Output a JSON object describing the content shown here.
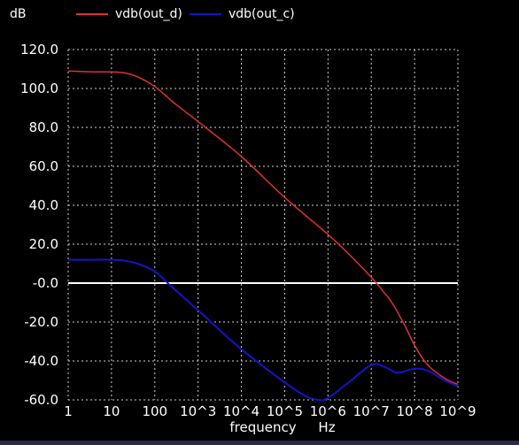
{
  "chart_data": {
    "type": "line",
    "y_unit": "dB",
    "xlabel": "frequency",
    "x_unit": "Hz",
    "x_scale": "log",
    "xlim": [
      1,
      1000000000
    ],
    "ylim": [
      -60,
      120
    ],
    "x_tick_values": [
      1,
      10,
      100,
      1000,
      10000,
      100000,
      1000000,
      10000000,
      100000000,
      1000000000
    ],
    "x_tick_labels": [
      "1",
      "10",
      "100",
      "10^3",
      "10^4",
      "10^5",
      "10^6",
      "10^7",
      "10^8",
      "10^9"
    ],
    "y_tick_values": [
      120,
      100,
      80,
      60,
      40,
      20,
      0,
      -20,
      -40,
      -60
    ],
    "y_tick_labels": [
      "120.0",
      "100.0",
      "80.0",
      "60.0",
      "40.0",
      "20.0",
      "-0.0",
      "-20.0",
      "-40.0",
      "-60.0"
    ],
    "grid": true,
    "legend_position": "top",
    "zero_line_color": "#ffffff",
    "series": [
      {
        "name": "vdb(out_d)",
        "color": "#e03030",
        "points": [
          [
            1,
            109
          ],
          [
            3,
            108.6
          ],
          [
            10,
            108.5
          ],
          [
            20,
            108
          ],
          [
            40,
            106
          ],
          [
            100,
            101
          ],
          [
            300,
            92
          ],
          [
            1000,
            83
          ],
          [
            10000,
            65
          ],
          [
            100000,
            44
          ],
          [
            1000000,
            25
          ],
          [
            3000000,
            15
          ],
          [
            10000000,
            3
          ],
          [
            20000000,
            -5
          ],
          [
            30000000,
            -10
          ],
          [
            60000000,
            -22
          ],
          [
            100000000,
            -32
          ],
          [
            200000000,
            -42
          ],
          [
            500000000,
            -49
          ],
          [
            1000000000,
            -52
          ]
        ]
      },
      {
        "name": "vdb(out_c)",
        "color": "#1414c8",
        "points": [
          [
            1,
            12
          ],
          [
            3,
            12
          ],
          [
            10,
            12
          ],
          [
            20,
            11.5
          ],
          [
            40,
            10
          ],
          [
            100,
            6
          ],
          [
            200,
            0
          ],
          [
            500,
            -8
          ],
          [
            1000,
            -14
          ],
          [
            10000,
            -34
          ],
          [
            100000,
            -51
          ],
          [
            300000,
            -58
          ],
          [
            600000,
            -60
          ],
          [
            1000000,
            -59
          ],
          [
            3000000,
            -51
          ],
          [
            10000000,
            -42
          ],
          [
            20000000,
            -43
          ],
          [
            40000000,
            -46
          ],
          [
            100000000,
            -44
          ],
          [
            200000000,
            -45
          ],
          [
            500000000,
            -50
          ],
          [
            1000000000,
            -53
          ]
        ]
      }
    ]
  }
}
